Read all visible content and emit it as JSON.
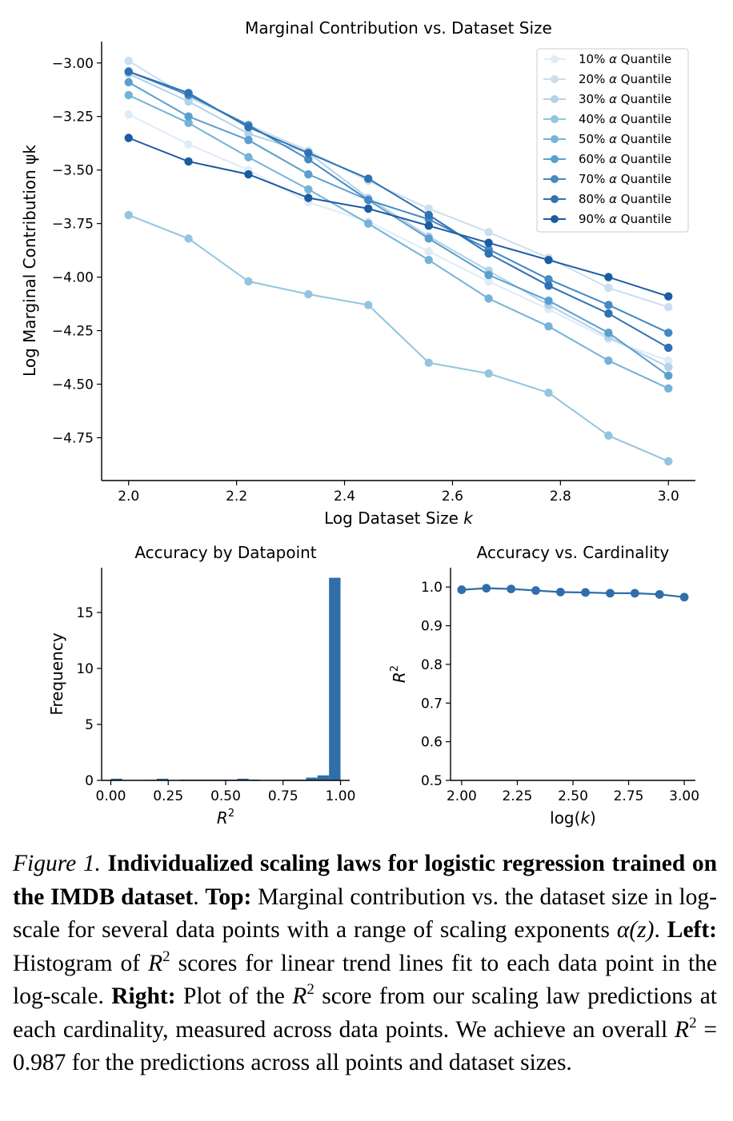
{
  "chart_data": [
    {
      "type": "line",
      "title": "Marginal Contribution vs. Dataset Size",
      "xlabel": "Log Dataset Size k",
      "ylabel": "Log Marginal Contribution ψk",
      "xlim": [
        1.95,
        3.05
      ],
      "ylim": [
        -4.95,
        -2.9
      ],
      "xticks": [
        "2.0",
        "2.2",
        "2.4",
        "2.6",
        "2.8",
        "3.0"
      ],
      "yticks": [
        "−3.00",
        "−3.25",
        "−3.50",
        "−3.75",
        "−4.00",
        "−4.25",
        "−4.50",
        "−4.75"
      ],
      "legend": "top-right",
      "x": [
        2.0,
        2.111,
        2.222,
        2.333,
        2.444,
        2.556,
        2.667,
        2.778,
        2.889,
        3.0
      ],
      "series": [
        {
          "name": "10% α Quantile",
          "color": "#dfebf7",
          "values": [
            -3.24,
            -3.38,
            -3.5,
            -3.65,
            -3.74,
            -3.88,
            -4.02,
            -4.15,
            -4.29,
            -4.39
          ]
        },
        {
          "name": "20% α Quantile",
          "color": "#cbdef0",
          "values": [
            -2.99,
            -3.16,
            -3.29,
            -3.41,
            -3.55,
            -3.68,
            -3.79,
            -3.91,
            -4.05,
            -4.14
          ]
        },
        {
          "name": "30% α Quantile",
          "color": "#b2d2e8",
          "values": [
            -3.05,
            -3.18,
            -3.33,
            -3.42,
            -3.63,
            -3.81,
            -3.97,
            -4.13,
            -4.28,
            -4.42
          ]
        },
        {
          "name": "40% α Quantile",
          "color": "#94c4df",
          "values": [
            -3.71,
            -3.82,
            -4.02,
            -4.08,
            -4.13,
            -4.4,
            -4.45,
            -4.54,
            -4.74,
            -4.86
          ]
        },
        {
          "name": "50% α Quantile",
          "color": "#74b3d8",
          "values": [
            -3.15,
            -3.28,
            -3.44,
            -3.59,
            -3.75,
            -3.92,
            -4.1,
            -4.23,
            -4.39,
            -4.52
          ]
        },
        {
          "name": "60% α Quantile",
          "color": "#5b9fce",
          "values": [
            -3.09,
            -3.25,
            -3.36,
            -3.52,
            -3.64,
            -3.82,
            -3.99,
            -4.11,
            -4.26,
            -4.46
          ]
        },
        {
          "name": "70% α Quantile",
          "color": "#4489c2",
          "values": [
            -3.04,
            -3.15,
            -3.29,
            -3.45,
            -3.64,
            -3.73,
            -3.87,
            -4.01,
            -4.13,
            -4.26
          ]
        },
        {
          "name": "80% α Quantile",
          "color": "#2f72b3",
          "values": [
            -3.04,
            -3.14,
            -3.3,
            -3.42,
            -3.54,
            -3.71,
            -3.89,
            -4.04,
            -4.17,
            -4.33
          ]
        },
        {
          "name": "90% α Quantile",
          "color": "#1b5ba2",
          "values": [
            -3.35,
            -3.46,
            -3.52,
            -3.63,
            -3.68,
            -3.76,
            -3.84,
            -3.92,
            -4.0,
            -4.09
          ]
        }
      ]
    },
    {
      "type": "bar",
      "title": "Accuracy by Datapoint",
      "xlabel": "R²",
      "ylabel": "Frequency",
      "xlim": [
        -0.04,
        1.04
      ],
      "ylim": [
        0,
        19
      ],
      "xticks": [
        "0.00",
        "0.25",
        "0.50",
        "0.75",
        "1.00"
      ],
      "yticks": [
        "0",
        "5",
        "10",
        "15"
      ],
      "color": "#2f6ea9",
      "bin_width": 0.05,
      "bin_starts": [
        0.0,
        0.15,
        0.2,
        0.3,
        0.35,
        0.4,
        0.45,
        0.5,
        0.55,
        0.6,
        0.75,
        0.8,
        0.85,
        0.9,
        0.95
      ],
      "values": [
        0.15,
        0.05,
        0.15,
        0.07,
        0.07,
        0.07,
        0.07,
        0.07,
        0.15,
        0.07,
        0.07,
        0.07,
        0.25,
        0.45,
        18.1
      ]
    },
    {
      "type": "line",
      "title": "Accuracy vs. Cardinality",
      "xlabel": "log(k)",
      "ylabel": "R²",
      "xlim": [
        1.95,
        3.05
      ],
      "ylim": [
        0.5,
        1.05
      ],
      "xticks": [
        "2.00",
        "2.25",
        "2.50",
        "2.75",
        "3.00"
      ],
      "yticks": [
        "0.5",
        "0.6",
        "0.7",
        "0.8",
        "0.9",
        "1.0"
      ],
      "color": "#2f6ea9",
      "x": [
        2.0,
        2.111,
        2.222,
        2.333,
        2.444,
        2.556,
        2.667,
        2.778,
        2.889,
        3.0
      ],
      "values": [
        0.993,
        0.997,
        0.995,
        0.991,
        0.987,
        0.986,
        0.984,
        0.984,
        0.981,
        0.974
      ]
    }
  ],
  "caption": {
    "figure_label": "Figure 1.",
    "title": "Individualized scaling laws for logistic regression trained on the IMDB dataset",
    "top_label": "Top:",
    "top_text": "Marginal contribution vs. the dataset size in log-scale for several data points with a range of scaling exponents",
    "alpha_z": "α(z)",
    "left_label": "Left:",
    "left_text_1": "Histogram of",
    "left_text_2": "scores for linear trend lines fit to each data point in the log-scale.",
    "right_label": "Right:",
    "right_text_1": "Plot of the",
    "right_text_2": "score from our scaling law predictions at each cardinality, measured across data points. We achieve an overall",
    "r2_value": "= 0.987",
    "right_text_3": "for the predictions across all points and dataset sizes.",
    "r_symbol": "R",
    "r_exp": "2"
  }
}
